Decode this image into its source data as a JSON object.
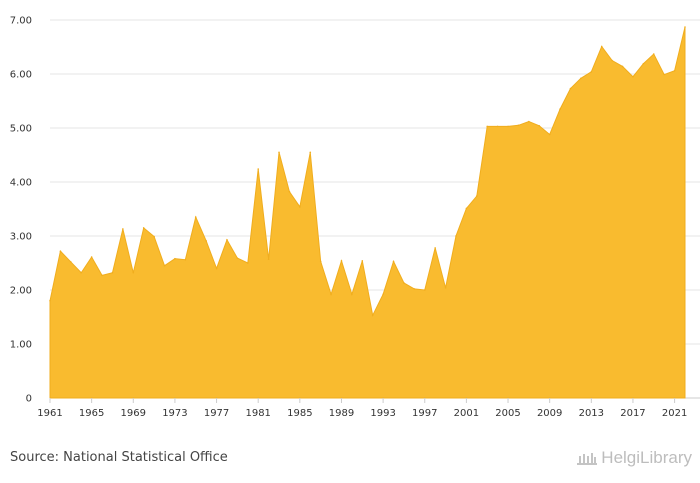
{
  "chart_data": {
    "type": "area",
    "title": "",
    "xlabel": "",
    "ylabel": "",
    "x": [
      1961,
      1962,
      1963,
      1964,
      1965,
      1966,
      1967,
      1968,
      1969,
      1970,
      1971,
      1972,
      1973,
      1974,
      1975,
      1976,
      1977,
      1978,
      1979,
      1980,
      1981,
      1982,
      1983,
      1984,
      1985,
      1986,
      1987,
      1988,
      1989,
      1990,
      1991,
      1992,
      1993,
      1994,
      1995,
      1996,
      1997,
      1998,
      1999,
      2000,
      2001,
      2002,
      2003,
      2004,
      2005,
      2006,
      2007,
      2008,
      2009,
      2010,
      2011,
      2012,
      2013,
      2014,
      2015,
      2016,
      2017,
      2018,
      2019,
      2020,
      2021,
      2022
    ],
    "values": [
      1.8,
      2.72,
      2.52,
      2.32,
      2.61,
      2.27,
      2.32,
      3.13,
      2.32,
      3.15,
      2.99,
      2.45,
      2.58,
      2.56,
      3.35,
      2.91,
      2.4,
      2.93,
      2.59,
      2.5,
      4.24,
      2.57,
      4.55,
      3.82,
      3.54,
      4.55,
      2.53,
      1.92,
      2.54,
      1.92,
      2.54,
      1.53,
      1.92,
      2.53,
      2.13,
      2.02,
      2.0,
      2.78,
      2.04,
      3.0,
      3.51,
      3.74,
      5.03,
      5.03,
      5.03,
      5.05,
      5.12,
      5.04,
      4.88,
      5.35,
      5.73,
      5.92,
      6.04,
      6.51,
      6.25,
      6.14,
      5.95,
      6.19,
      6.37,
      5.99,
      6.06,
      6.87
    ],
    "ylim": [
      0,
      7
    ],
    "yticks": [
      0,
      1,
      2,
      3,
      4,
      5,
      6,
      7
    ],
    "ytick_labels": [
      "0",
      "1.00",
      "2.00",
      "3.00",
      "4.00",
      "5.00",
      "6.00",
      "7.00"
    ],
    "xtick_labels": [
      "1961",
      "1965",
      "1969",
      "1973",
      "1977",
      "1981",
      "1985",
      "1989",
      "1993",
      "1997",
      "2001",
      "2005",
      "2009",
      "2013",
      "2017",
      "2021"
    ],
    "grid": true,
    "fill_color": "#f9bb2f",
    "line_color": "#f0ad1e"
  },
  "footer": {
    "source": "Source: National Statistical Office",
    "brand": "HelgiLibrary"
  }
}
